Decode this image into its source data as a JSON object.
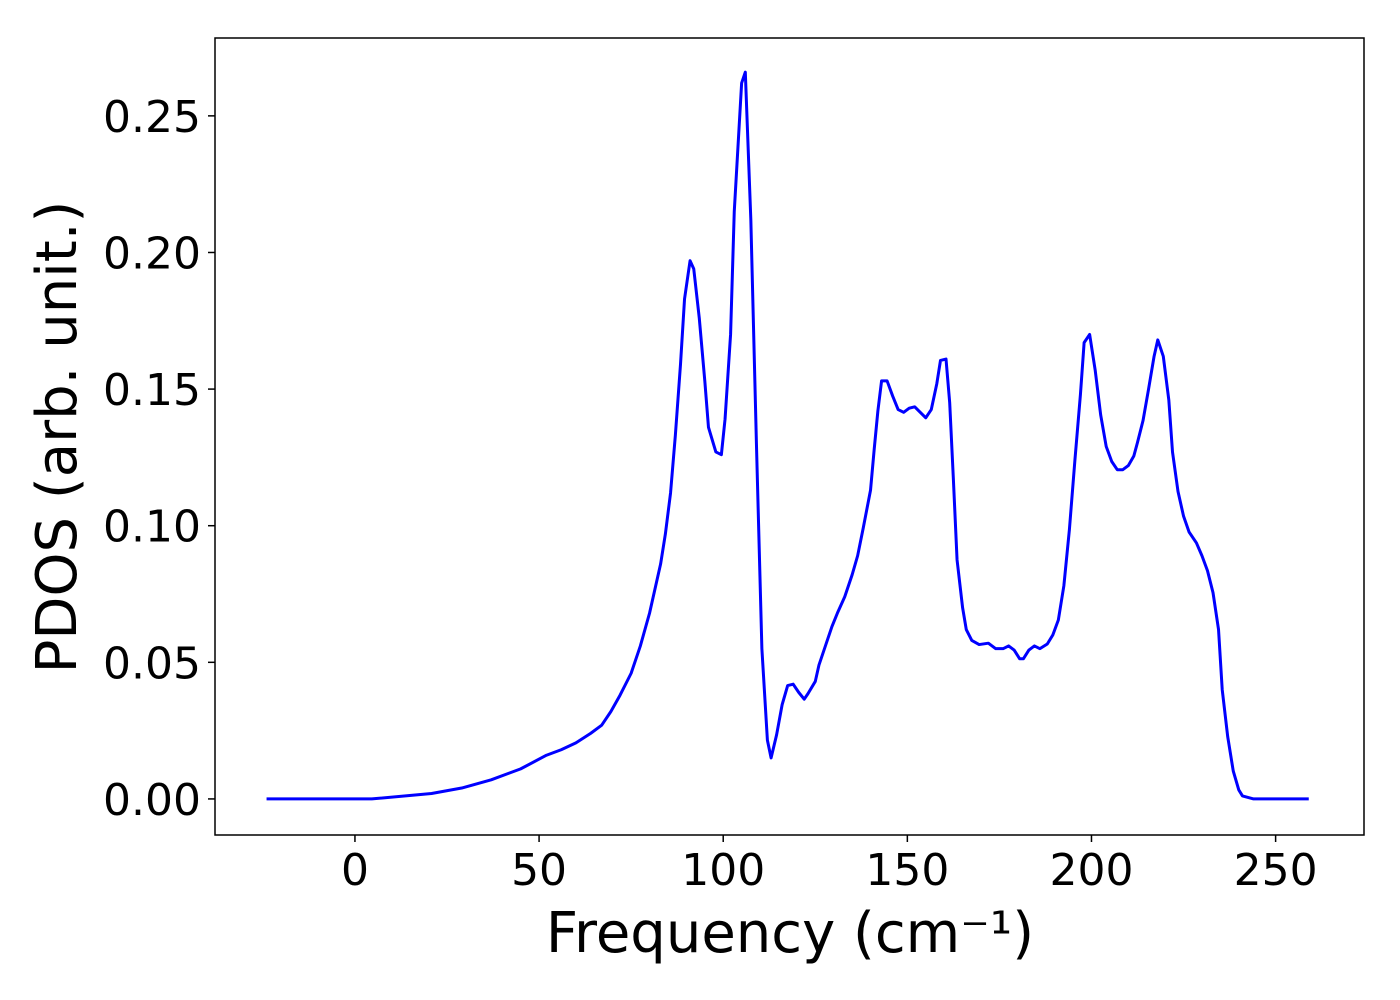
{
  "chart_data": {
    "type": "line",
    "xlabel": "Frequency (cm⁻¹)",
    "ylabel": "PDOS (arb. unit.)",
    "color": "#0000ff",
    "x": [
      -24,
      4.6,
      20.8,
      29,
      37,
      45,
      52,
      56,
      60,
      64,
      67,
      69.5,
      72,
      75,
      77.5,
      80,
      83,
      84.3,
      85.7,
      87,
      88.4,
      89.5,
      91,
      92,
      93.5,
      95,
      96,
      98,
      99.5,
      100.5,
      102,
      103,
      105,
      106,
      107.5,
      109,
      110.5,
      112,
      113,
      114.5,
      116,
      117.5,
      119,
      120.5,
      122,
      123,
      125,
      126,
      128,
      129.5,
      131,
      133,
      135,
      136.5,
      138,
      140,
      141,
      142,
      143,
      144.5,
      146,
      147.5,
      149,
      150.5,
      152,
      153.5,
      155,
      156.5,
      158,
      159,
      160.5,
      161.5,
      162.5,
      163.5,
      165,
      166,
      167.5,
      169.5,
      172,
      174,
      176,
      177.5,
      179,
      180.5,
      181.5,
      183,
      184.5,
      186,
      188,
      189.5,
      191,
      192.5,
      194,
      195.5,
      197,
      198,
      199.5,
      201,
      202.5,
      204,
      205.5,
      207,
      208.5,
      210,
      211.5,
      212.5,
      214,
      215.5,
      217,
      218,
      219.5,
      221,
      222,
      223.5,
      225,
      226.5,
      228.5,
      230,
      231.5,
      233,
      234.5,
      235.5,
      237,
      238.5,
      240,
      241,
      244,
      259
    ],
    "values": [
      0,
      0,
      0.002,
      0.004,
      0.007,
      0.011,
      0.016,
      0.018,
      0.0205,
      0.024,
      0.027,
      0.032,
      0.038,
      0.046,
      0.056,
      0.068,
      0.086,
      0.097,
      0.112,
      0.133,
      0.159,
      0.183,
      0.197,
      0.194,
      0.176,
      0.153,
      0.136,
      0.127,
      0.126,
      0.139,
      0.17,
      0.215,
      0.262,
      0.266,
      0.212,
      0.131,
      0.055,
      0.0215,
      0.015,
      0.0235,
      0.0345,
      0.0415,
      0.042,
      0.039,
      0.0365,
      0.0385,
      0.043,
      0.049,
      0.057,
      0.063,
      0.068,
      0.074,
      0.082,
      0.089,
      0.099,
      0.113,
      0.128,
      0.142,
      0.153,
      0.153,
      0.1475,
      0.1425,
      0.1415,
      0.143,
      0.1435,
      0.1415,
      0.1395,
      0.1425,
      0.152,
      0.1605,
      0.161,
      0.145,
      0.117,
      0.0875,
      0.07,
      0.062,
      0.058,
      0.0565,
      0.057,
      0.055,
      0.055,
      0.056,
      0.0545,
      0.0513,
      0.0513,
      0.0545,
      0.056,
      0.055,
      0.0567,
      0.06,
      0.0655,
      0.078,
      0.0985,
      0.124,
      0.148,
      0.167,
      0.17,
      0.157,
      0.1405,
      0.129,
      0.1235,
      0.1205,
      0.1205,
      0.122,
      0.1255,
      0.1305,
      0.1385,
      0.15,
      0.162,
      0.168,
      0.162,
      0.146,
      0.127,
      0.1125,
      0.1035,
      0.0977,
      0.0937,
      0.089,
      0.0835,
      0.0755,
      0.062,
      0.04,
      0.0227,
      0.0102,
      0.0033,
      0.0011,
      0,
      0
    ],
    "xlim": [
      -38,
      274
    ],
    "ylim": [
      -0.0132,
      0.2785
    ],
    "xticks": [
      0,
      50,
      100,
      150,
      200,
      250
    ],
    "yticks": [
      {
        "value": 0,
        "label": "0.00"
      },
      {
        "value": 0.05,
        "label": "0.05"
      },
      {
        "value": 0.1,
        "label": "0.10"
      },
      {
        "value": 0.15,
        "label": "0.15"
      },
      {
        "value": 0.2,
        "label": "0.20"
      },
      {
        "value": 0.25,
        "label": "0.25"
      }
    ]
  }
}
